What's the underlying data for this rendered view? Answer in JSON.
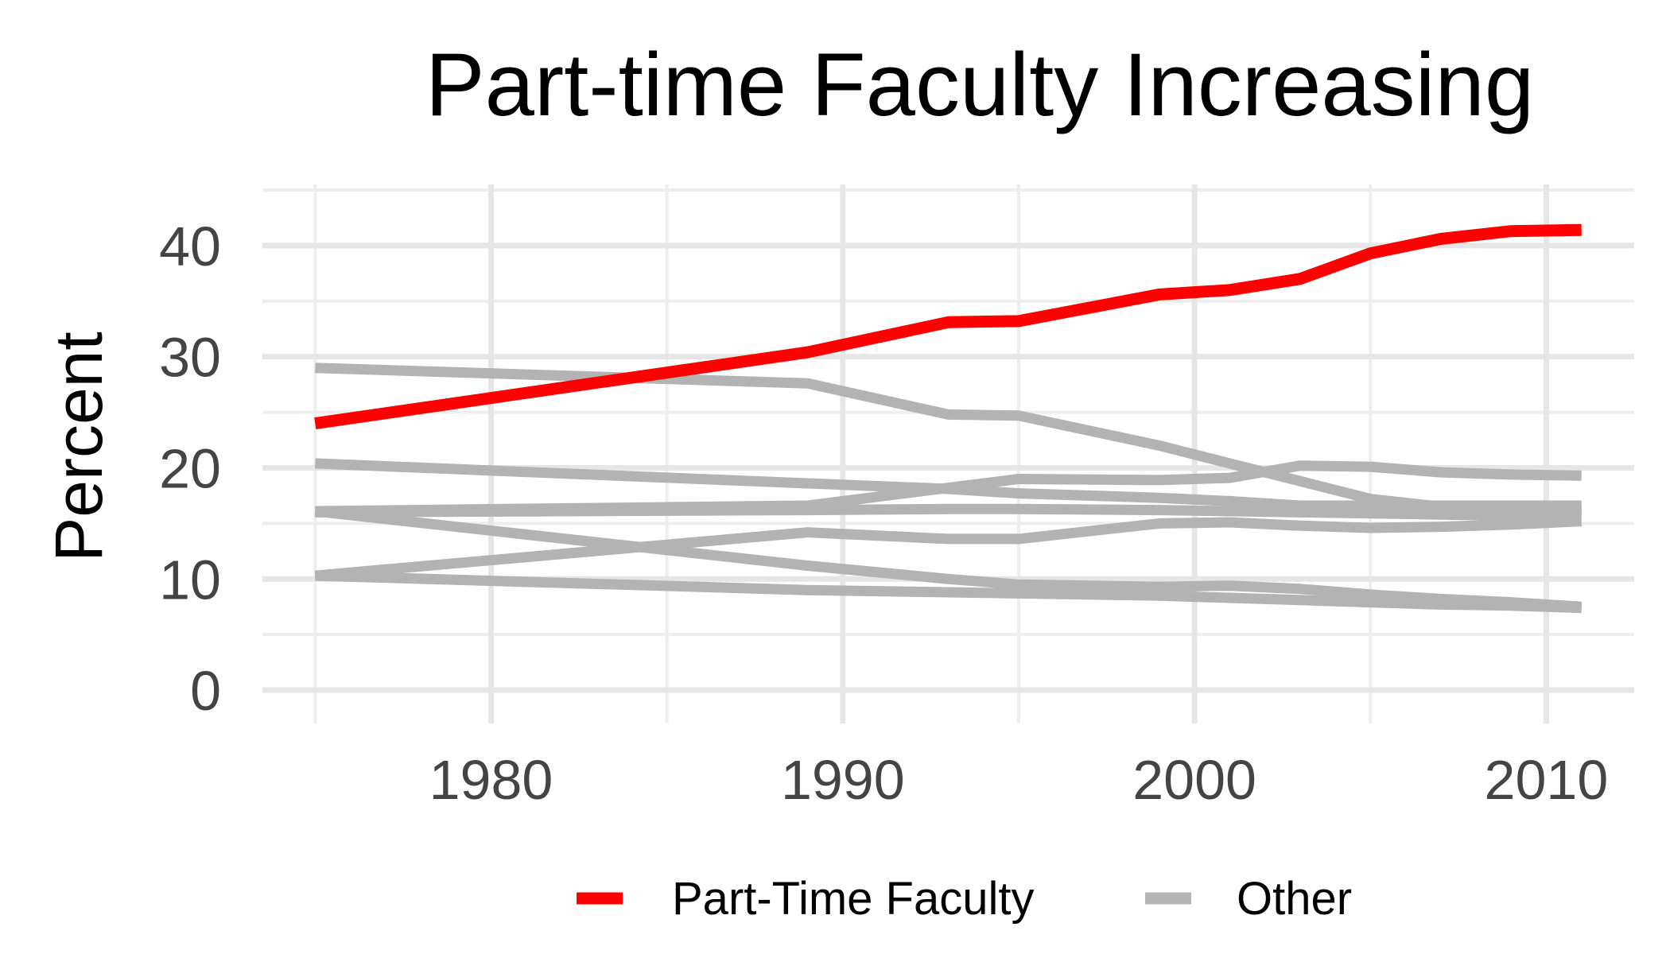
{
  "chart_data": {
    "type": "line",
    "title": "Part-time Faculty Increasing",
    "xlabel": "",
    "ylabel": "Percent",
    "xlim": [
      1973.5,
      2012.5
    ],
    "ylim": [
      -3,
      45.5
    ],
    "x_ticks": [
      1980,
      1990,
      2000,
      2010
    ],
    "y_ticks": [
      0,
      10,
      20,
      30,
      40
    ],
    "grid": true,
    "legend_position": "bottom",
    "legend": [
      {
        "label": "Part-Time Faculty",
        "color": "#ff0000"
      },
      {
        "label": "Other",
        "color": "#b3b3b3"
      }
    ],
    "series": [
      {
        "group": "Other",
        "color": "#b3b3b3",
        "x": [
          1975,
          1989,
          1993,
          1995,
          1999,
          2001,
          2003,
          2005,
          2007,
          2009,
          2011
        ],
        "y": [
          29.0,
          27.6,
          24.8,
          24.7,
          22.0,
          20.4,
          18.8,
          17.2,
          16.5,
          16.2,
          16.1
        ]
      },
      {
        "group": "Other",
        "color": "#b3b3b3",
        "x": [
          1975,
          1989,
          1993,
          1995,
          1999,
          2001,
          2003,
          2005,
          2007,
          2009,
          2011
        ],
        "y": [
          20.4,
          18.6,
          18.1,
          17.7,
          17.3,
          17.0,
          16.6,
          16.6,
          16.6,
          16.6,
          16.6
        ]
      },
      {
        "group": "Other",
        "color": "#b3b3b3",
        "x": [
          1975,
          1989,
          1993,
          1995,
          1999,
          2001,
          2003,
          2005,
          2007,
          2009,
          2011
        ],
        "y": [
          16.1,
          16.6,
          18.2,
          19.0,
          18.9,
          19.1,
          20.2,
          20.1,
          19.6,
          19.4,
          19.3
        ]
      },
      {
        "group": "Other",
        "color": "#b3b3b3",
        "x": [
          1975,
          1989,
          1993,
          1995,
          1999,
          2001,
          2003,
          2005,
          2007,
          2009,
          2011
        ],
        "y": [
          16.0,
          16.2,
          16.3,
          16.3,
          16.2,
          16.1,
          16.0,
          15.9,
          15.8,
          15.7,
          15.6
        ]
      },
      {
        "group": "Other",
        "color": "#b3b3b3",
        "x": [
          1975,
          1989,
          1993,
          1995,
          1999,
          2001,
          2003,
          2005,
          2007,
          2009,
          2011
        ],
        "y": [
          16.1,
          11.2,
          10.0,
          9.5,
          9.3,
          9.4,
          9.1,
          8.6,
          8.2,
          7.9,
          7.5
        ]
      },
      {
        "group": "Other",
        "color": "#b3b3b3",
        "x": [
          1975,
          1989,
          1993,
          1995,
          1999,
          2001,
          2003,
          2005,
          2007,
          2009,
          2011
        ],
        "y": [
          10.3,
          14.2,
          13.6,
          13.6,
          15.0,
          15.1,
          14.8,
          14.6,
          14.7,
          14.9,
          15.2
        ]
      },
      {
        "group": "Other",
        "color": "#b3b3b3",
        "x": [
          1975,
          1989,
          1993,
          1995,
          1999,
          2001,
          2003,
          2005,
          2007,
          2009,
          2011
        ],
        "y": [
          10.3,
          9.0,
          8.8,
          8.7,
          8.5,
          8.3,
          8.1,
          7.9,
          7.7,
          7.6,
          7.4
        ]
      },
      {
        "group": "Part-Time Faculty",
        "color": "#ff0000",
        "x": [
          1975,
          1989,
          1993,
          1995,
          1999,
          2001,
          2003,
          2005,
          2007,
          2009,
          2011
        ],
        "y": [
          24.0,
          30.4,
          33.1,
          33.2,
          35.6,
          36.0,
          37.0,
          39.3,
          40.6,
          41.3,
          41.4
        ]
      }
    ]
  }
}
